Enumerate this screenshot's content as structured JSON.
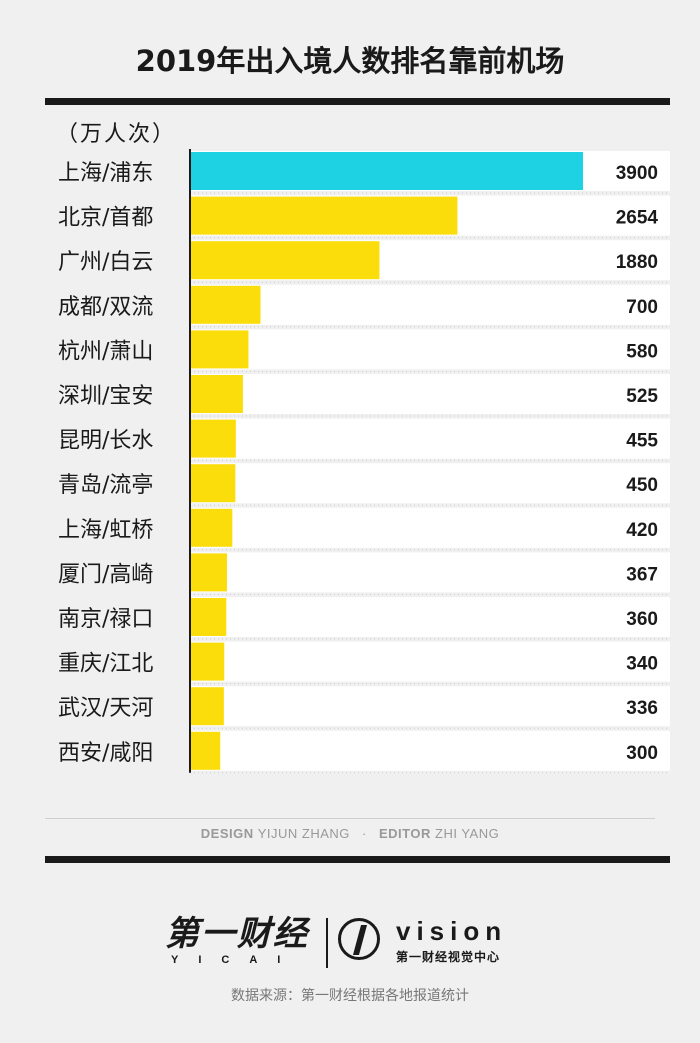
{
  "title": "2019年出入境人数排名靠前机场",
  "unit_label": "（万人次）",
  "credits": {
    "design_label": "DESIGN",
    "design_name": "YIJUN ZHANG",
    "separator": "·",
    "editor_label": "EDITOR",
    "editor_name": "ZHI YANG"
  },
  "logos": {
    "yicai_cn": "第一财经",
    "yicai_en": "YICAI",
    "vision_word": "vision",
    "vision_sub": "第一财经视觉中心"
  },
  "source": "数据来源：第一财经根据各地报道统计",
  "colors": {
    "highlight_bar": "#1ed2e4",
    "bar": "#fbdd0c",
    "text": "#1a1a1a",
    "row_bg": "#ffffff"
  },
  "chart_data": {
    "type": "bar",
    "orientation": "horizontal",
    "title": "2019年出入境人数排名靠前机场",
    "unit": "万人次",
    "xlim": [
      0,
      3900
    ],
    "grid": false,
    "categories": [
      "上海/浦东",
      "北京/首都",
      "广州/白云",
      "成都/双流",
      "杭州/萧山",
      "深圳/宝安",
      "昆明/长水",
      "青岛/流亭",
      "上海/虹桥",
      "厦门/高崎",
      "南京/禄口",
      "重庆/江北",
      "武汉/天河",
      "西安/咸阳"
    ],
    "values": [
      3900,
      2654,
      1880,
      700,
      580,
      525,
      455,
      450,
      420,
      367,
      360,
      340,
      336,
      300
    ],
    "highlight_index": 0
  }
}
